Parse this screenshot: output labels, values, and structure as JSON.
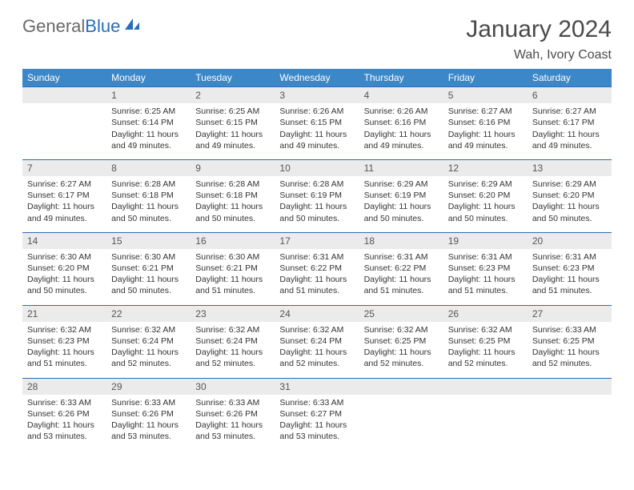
{
  "logo": {
    "text1": "General",
    "text2": "Blue"
  },
  "title": "January 2024",
  "location": "Wah, Ivory Coast",
  "colors": {
    "header_bg": "#3b87c8",
    "header_text": "#ffffff",
    "daynum_bg": "#ebebeb",
    "border": "#2a6db8",
    "logo_gray": "#6a6a6a",
    "logo_blue": "#2a6db8"
  },
  "dayHeaders": [
    "Sunday",
    "Monday",
    "Tuesday",
    "Wednesday",
    "Thursday",
    "Friday",
    "Saturday"
  ],
  "weeks": [
    [
      null,
      {
        "n": "1",
        "sr": "6:25 AM",
        "ss": "6:14 PM",
        "dl": "11 hours and 49 minutes."
      },
      {
        "n": "2",
        "sr": "6:25 AM",
        "ss": "6:15 PM",
        "dl": "11 hours and 49 minutes."
      },
      {
        "n": "3",
        "sr": "6:26 AM",
        "ss": "6:15 PM",
        "dl": "11 hours and 49 minutes."
      },
      {
        "n": "4",
        "sr": "6:26 AM",
        "ss": "6:16 PM",
        "dl": "11 hours and 49 minutes."
      },
      {
        "n": "5",
        "sr": "6:27 AM",
        "ss": "6:16 PM",
        "dl": "11 hours and 49 minutes."
      },
      {
        "n": "6",
        "sr": "6:27 AM",
        "ss": "6:17 PM",
        "dl": "11 hours and 49 minutes."
      }
    ],
    [
      {
        "n": "7",
        "sr": "6:27 AM",
        "ss": "6:17 PM",
        "dl": "11 hours and 49 minutes."
      },
      {
        "n": "8",
        "sr": "6:28 AM",
        "ss": "6:18 PM",
        "dl": "11 hours and 50 minutes."
      },
      {
        "n": "9",
        "sr": "6:28 AM",
        "ss": "6:18 PM",
        "dl": "11 hours and 50 minutes."
      },
      {
        "n": "10",
        "sr": "6:28 AM",
        "ss": "6:19 PM",
        "dl": "11 hours and 50 minutes."
      },
      {
        "n": "11",
        "sr": "6:29 AM",
        "ss": "6:19 PM",
        "dl": "11 hours and 50 minutes."
      },
      {
        "n": "12",
        "sr": "6:29 AM",
        "ss": "6:20 PM",
        "dl": "11 hours and 50 minutes."
      },
      {
        "n": "13",
        "sr": "6:29 AM",
        "ss": "6:20 PM",
        "dl": "11 hours and 50 minutes."
      }
    ],
    [
      {
        "n": "14",
        "sr": "6:30 AM",
        "ss": "6:20 PM",
        "dl": "11 hours and 50 minutes."
      },
      {
        "n": "15",
        "sr": "6:30 AM",
        "ss": "6:21 PM",
        "dl": "11 hours and 50 minutes."
      },
      {
        "n": "16",
        "sr": "6:30 AM",
        "ss": "6:21 PM",
        "dl": "11 hours and 51 minutes."
      },
      {
        "n": "17",
        "sr": "6:31 AM",
        "ss": "6:22 PM",
        "dl": "11 hours and 51 minutes."
      },
      {
        "n": "18",
        "sr": "6:31 AM",
        "ss": "6:22 PM",
        "dl": "11 hours and 51 minutes."
      },
      {
        "n": "19",
        "sr": "6:31 AM",
        "ss": "6:23 PM",
        "dl": "11 hours and 51 minutes."
      },
      {
        "n": "20",
        "sr": "6:31 AM",
        "ss": "6:23 PM",
        "dl": "11 hours and 51 minutes."
      }
    ],
    [
      {
        "n": "21",
        "sr": "6:32 AM",
        "ss": "6:23 PM",
        "dl": "11 hours and 51 minutes."
      },
      {
        "n": "22",
        "sr": "6:32 AM",
        "ss": "6:24 PM",
        "dl": "11 hours and 52 minutes."
      },
      {
        "n": "23",
        "sr": "6:32 AM",
        "ss": "6:24 PM",
        "dl": "11 hours and 52 minutes."
      },
      {
        "n": "24",
        "sr": "6:32 AM",
        "ss": "6:24 PM",
        "dl": "11 hours and 52 minutes."
      },
      {
        "n": "25",
        "sr": "6:32 AM",
        "ss": "6:25 PM",
        "dl": "11 hours and 52 minutes."
      },
      {
        "n": "26",
        "sr": "6:32 AM",
        "ss": "6:25 PM",
        "dl": "11 hours and 52 minutes."
      },
      {
        "n": "27",
        "sr": "6:33 AM",
        "ss": "6:25 PM",
        "dl": "11 hours and 52 minutes."
      }
    ],
    [
      {
        "n": "28",
        "sr": "6:33 AM",
        "ss": "6:26 PM",
        "dl": "11 hours and 53 minutes."
      },
      {
        "n": "29",
        "sr": "6:33 AM",
        "ss": "6:26 PM",
        "dl": "11 hours and 53 minutes."
      },
      {
        "n": "30",
        "sr": "6:33 AM",
        "ss": "6:26 PM",
        "dl": "11 hours and 53 minutes."
      },
      {
        "n": "31",
        "sr": "6:33 AM",
        "ss": "6:27 PM",
        "dl": "11 hours and 53 minutes."
      },
      null,
      null,
      null
    ]
  ],
  "labels": {
    "sunrise": "Sunrise:",
    "sunset": "Sunset:",
    "daylight": "Daylight:"
  }
}
